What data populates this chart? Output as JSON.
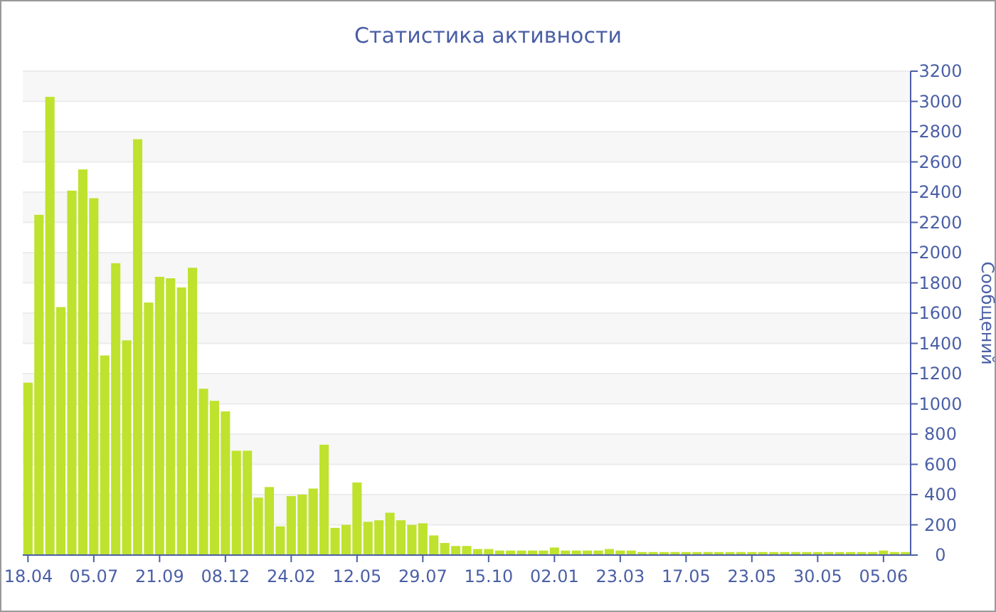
{
  "chart_data": {
    "type": "bar",
    "title": "Статистика активности",
    "ylabel": "Сообщений",
    "categories": [
      "18.04",
      null,
      null,
      null,
      null,
      null,
      "05.07",
      null,
      null,
      null,
      null,
      null,
      "21.09",
      null,
      null,
      null,
      null,
      null,
      "08.12",
      null,
      null,
      null,
      null,
      null,
      "24.02",
      null,
      null,
      null,
      null,
      null,
      "12.05",
      null,
      null,
      null,
      null,
      null,
      "29.07",
      null,
      null,
      null,
      null,
      null,
      "15.10",
      null,
      null,
      null,
      null,
      null,
      "02.01",
      null,
      null,
      null,
      null,
      null,
      "23.03",
      null,
      null,
      null,
      null,
      null,
      "17.05",
      null,
      null,
      null,
      null,
      null,
      "23.05",
      null,
      null,
      null,
      null,
      null,
      "30.05",
      null,
      null,
      null,
      null,
      null,
      "05.06",
      null,
      null
    ],
    "values": [
      1140,
      2250,
      3030,
      1640,
      2410,
      2550,
      2360,
      1320,
      1930,
      1420,
      2750,
      1670,
      1840,
      1830,
      1770,
      1900,
      1100,
      1020,
      950,
      690,
      690,
      380,
      450,
      190,
      390,
      400,
      440,
      730,
      180,
      200,
      480,
      220,
      230,
      280,
      230,
      200,
      210,
      130,
      80,
      60,
      60,
      40,
      40,
      30,
      30,
      30,
      30,
      30,
      50,
      30,
      30,
      30,
      30,
      40,
      30,
      30,
      20,
      20,
      20,
      20,
      20,
      20,
      20,
      20,
      20,
      20,
      20,
      20,
      20,
      20,
      20,
      20,
      20,
      20,
      20,
      20,
      20,
      20,
      30,
      20,
      20
    ],
    "color": "#bfe22e",
    "ylim": [
      0,
      3200
    ],
    "yticks": [
      0,
      200,
      400,
      600,
      800,
      1000,
      1200,
      1400,
      1600,
      1800,
      2000,
      2200,
      2400,
      2600,
      2800,
      3000,
      3200
    ],
    "grid": true
  }
}
